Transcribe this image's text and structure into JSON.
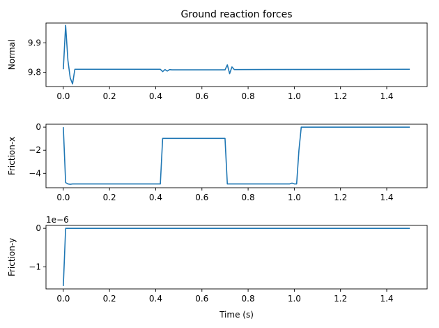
{
  "chart_data": {
    "title": "Ground reaction forces",
    "type": "line",
    "line_color": "#1f77b4",
    "grid": false,
    "panels": [
      {
        "ylabel": "Normal",
        "xlabel": "",
        "offset_text": "",
        "xlim": [
          -0.075,
          1.575
        ],
        "ylim": [
          9.751,
          9.968
        ],
        "xticks": [
          0.0,
          0.2,
          0.4,
          0.6,
          0.8,
          1.0,
          1.2,
          1.4
        ],
        "xtick_labels": [
          "0.0",
          "0.2",
          "0.4",
          "0.6",
          "0.8",
          "1.0",
          "1.2",
          "1.4"
        ],
        "yticks": [
          9.8,
          9.9
        ],
        "ytick_labels": [
          "9.8",
          "9.9"
        ],
        "series": [
          {
            "x": [
              0.0,
              0.01,
              0.02,
              0.03,
              0.04,
              0.05,
              0.42,
              0.43,
              0.44,
              0.45,
              0.46,
              0.47,
              0.7,
              0.71,
              0.72,
              0.73,
              0.74,
              1.5
            ],
            "y": [
              9.81,
              9.96,
              9.84,
              9.78,
              9.76,
              9.81,
              9.81,
              9.802,
              9.809,
              9.804,
              9.809,
              9.808,
              9.808,
              9.825,
              9.795,
              9.818,
              9.809,
              9.81
            ]
          }
        ]
      },
      {
        "ylabel": "Friction-x",
        "xlabel": "",
        "offset_text": "",
        "xlim": [
          -0.075,
          1.575
        ],
        "ylim": [
          -5.25,
          0.25
        ],
        "xticks": [
          0.0,
          0.2,
          0.4,
          0.6,
          0.8,
          1.0,
          1.2,
          1.4
        ],
        "xtick_labels": [
          "0.0",
          "0.2",
          "0.4",
          "0.6",
          "0.8",
          "1.0",
          "1.2",
          "1.4"
        ],
        "yticks": [
          0,
          -2,
          -4
        ],
        "ytick_labels": [
          "0",
          "−2",
          "−4"
        ],
        "series": [
          {
            "x": [
              0.0,
              0.01,
              0.02,
              0.03,
              0.04,
              0.05,
              0.42,
              0.43,
              0.44,
              0.7,
              0.71,
              0.72,
              0.98,
              0.99,
              1.0,
              1.01,
              1.02,
              1.03,
              1.04,
              1.5
            ],
            "y": [
              0.0,
              -4.8,
              -4.92,
              -4.95,
              -4.92,
              -4.92,
              -4.92,
              -0.98,
              -0.98,
              -0.98,
              -4.92,
              -4.92,
              -4.92,
              -4.85,
              -4.92,
              -4.92,
              -2.0,
              0.0,
              0.0,
              0.0
            ]
          }
        ]
      },
      {
        "ylabel": "Friction-y",
        "xlabel": "Time (s)",
        "offset_text": "1e−6",
        "xlim": [
          -0.075,
          1.575
        ],
        "ylim": [
          -1.575,
          0.075
        ],
        "xticks": [
          0.0,
          0.2,
          0.4,
          0.6,
          0.8,
          1.0,
          1.2,
          1.4
        ],
        "xtick_labels": [
          "0.0",
          "0.2",
          "0.4",
          "0.6",
          "0.8",
          "1.0",
          "1.2",
          "1.4"
        ],
        "yticks": [
          0,
          -1
        ],
        "ytick_labels": [
          "0",
          "−1"
        ],
        "series": [
          {
            "x": [
              0.0,
              0.01,
              0.02,
              1.5
            ],
            "y": [
              -1.5,
              0.0,
              0.0,
              0.0
            ]
          }
        ]
      }
    ]
  }
}
